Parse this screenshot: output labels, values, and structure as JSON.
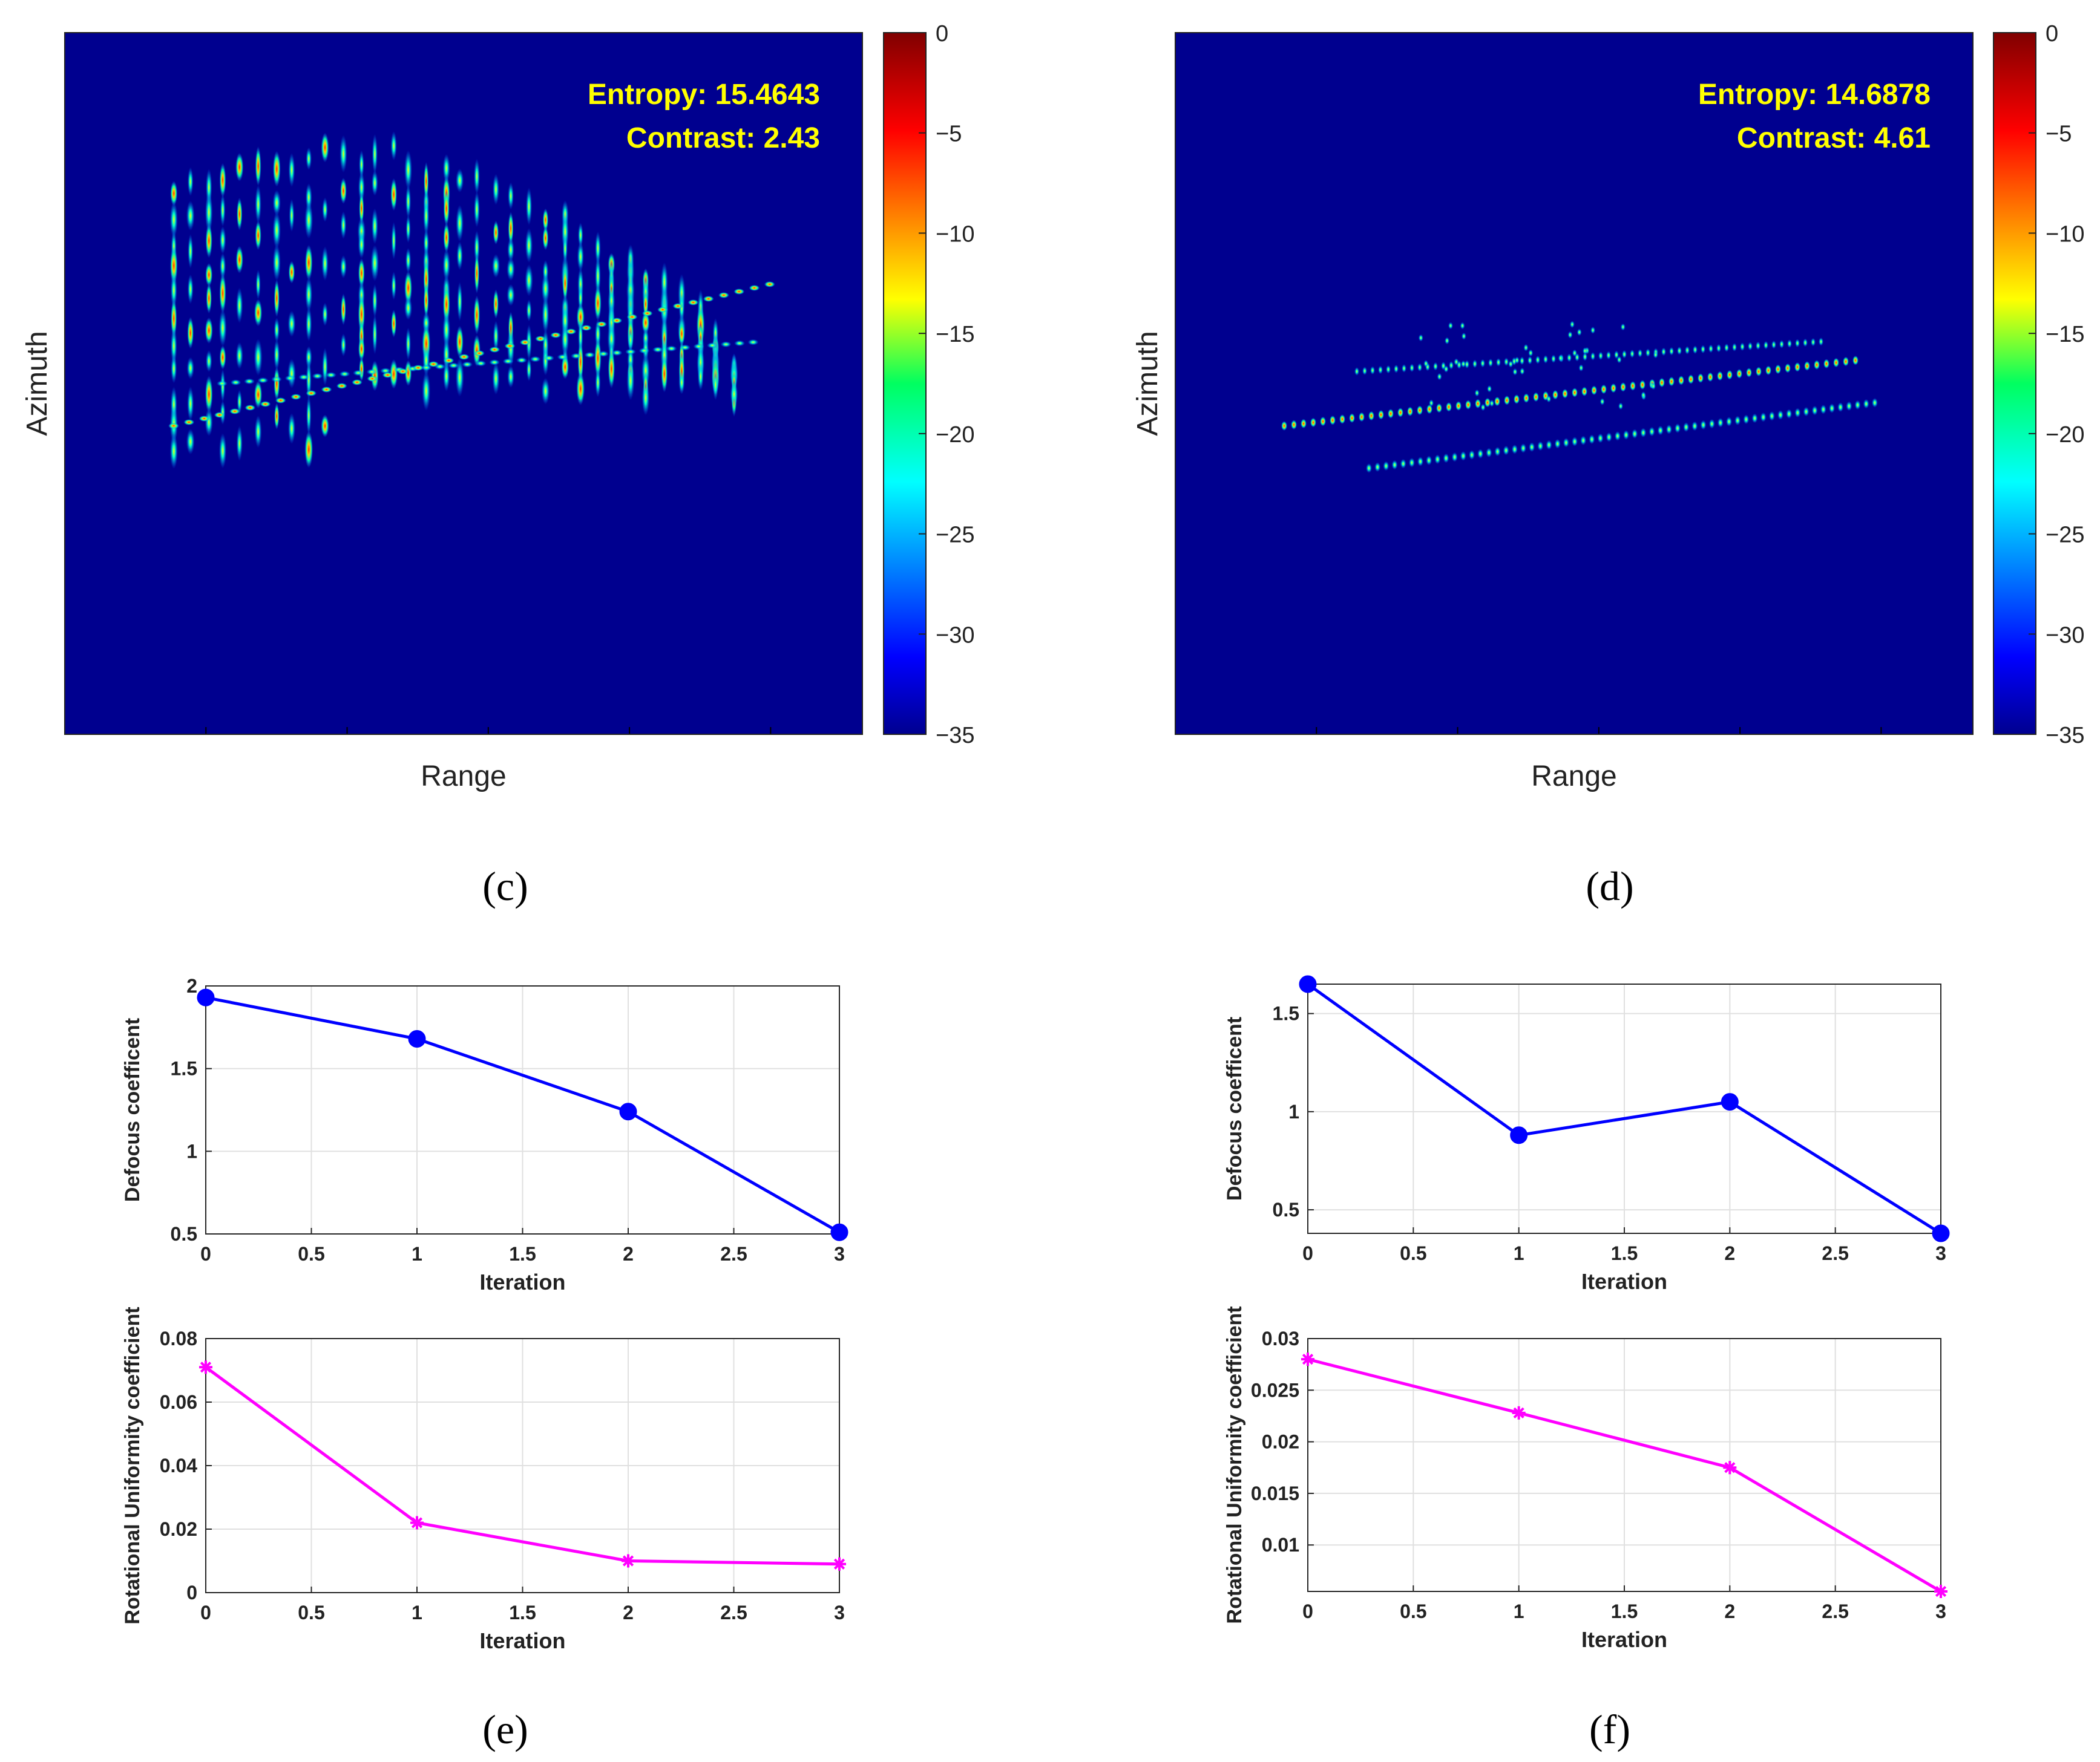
{
  "chart_data": [
    {
      "type": "heatmap",
      "panel": "(c)",
      "xlabel": "Range",
      "ylabel": "Azimuth",
      "annotations": [
        "Entropy: 15.4643",
        "Contrast: 2.43"
      ],
      "colorbar": {
        "range": [
          -35,
          0
        ],
        "ticks": [
          0,
          -5,
          -10,
          -15,
          -20,
          -25,
          -30,
          -35
        ],
        "colormap": "jet"
      }
    },
    {
      "type": "heatmap",
      "panel": "(d)",
      "xlabel": "Range",
      "ylabel": "Azimuth",
      "annotations": [
        "Entropy: 14.6878",
        "Contrast: 4.61"
      ],
      "colorbar": {
        "range": [
          -35,
          0
        ],
        "ticks": [
          0,
          -5,
          -10,
          -15,
          -20,
          -25,
          -30,
          -35
        ],
        "colormap": "jet"
      }
    },
    {
      "type": "line",
      "panel": "(e)",
      "xlabel": "Iteration",
      "ylabel": "Defocus coefficent",
      "x": [
        0,
        1,
        2,
        3
      ],
      "values": [
        1.93,
        1.68,
        1.24,
        0.51
      ],
      "xlim": [
        0,
        3
      ],
      "ylim": [
        0.5,
        2
      ],
      "xticks": [
        0,
        0.5,
        1,
        1.5,
        2,
        2.5,
        3
      ],
      "yticks": [
        0.5,
        1,
        1.5,
        2
      ],
      "color": "#0000ff",
      "marker": "circle",
      "grid": true
    },
    {
      "type": "line",
      "panel": "(e)",
      "xlabel": "Iteration",
      "ylabel": "Rotational Uniformity coefficient",
      "x": [
        0,
        1,
        2,
        3
      ],
      "values": [
        0.071,
        0.022,
        0.01,
        0.009
      ],
      "xlim": [
        0,
        3
      ],
      "ylim": [
        0,
        0.08
      ],
      "xticks": [
        0,
        0.5,
        1,
        1.5,
        2,
        2.5,
        3
      ],
      "yticks": [
        0,
        0.02,
        0.04,
        0.06,
        0.08
      ],
      "color": "#ff00ff",
      "marker": "asterisk",
      "grid": true
    },
    {
      "type": "line",
      "panel": "(f)",
      "xlabel": "Iteration",
      "ylabel": "Defocus coefficent",
      "x": [
        0,
        1,
        2,
        3
      ],
      "values": [
        1.65,
        0.88,
        1.05,
        0.38
      ],
      "xlim": [
        0,
        3
      ],
      "ylim": [
        0.38,
        1.65
      ],
      "xticks": [
        0,
        0.5,
        1,
        1.5,
        2,
        2.5,
        3
      ],
      "yticks": [
        0.5,
        1,
        1.5
      ],
      "color": "#0000ff",
      "marker": "circle",
      "grid": true
    },
    {
      "type": "line",
      "panel": "(f)",
      "xlabel": "Iteration",
      "ylabel": "Rotational Uniformity coefficient",
      "x": [
        0,
        1,
        2,
        3
      ],
      "values": [
        0.028,
        0.0228,
        0.0175,
        0.0055
      ],
      "xlim": [
        0,
        3
      ],
      "ylim": [
        0.0055,
        0.03
      ],
      "xticks": [
        0,
        0.5,
        1,
        1.5,
        2,
        2.5,
        3
      ],
      "yticks": [
        0.01,
        0.015,
        0.02,
        0.025,
        0.03
      ],
      "color": "#ff00ff",
      "marker": "asterisk",
      "grid": true
    }
  ]
}
